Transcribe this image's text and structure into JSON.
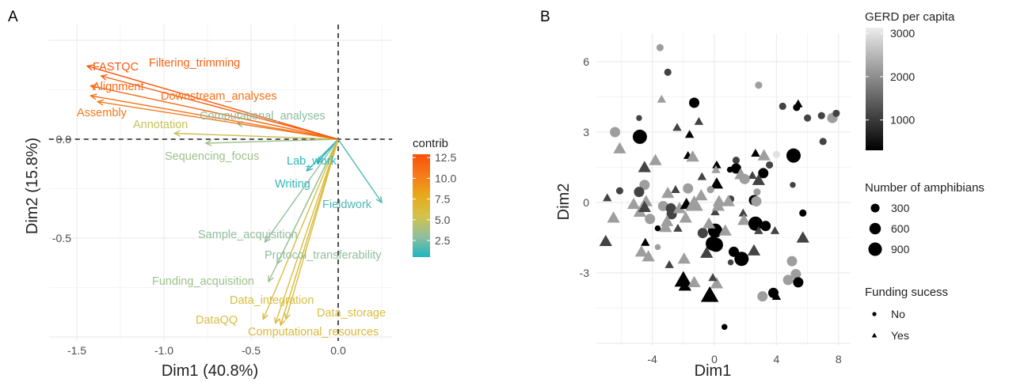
{
  "chart_data": [
    {
      "panel_label": "A",
      "type": "biplot-arrows",
      "xlabel": "Dim1 (40.8%)",
      "ylabel": "Dim2 (15.8%)",
      "xlim": [
        -1.66,
        0.31
      ],
      "ylim": [
        -1.02,
        0.58
      ],
      "x_ticks": [
        -1.5,
        -1.0,
        -0.5,
        0.0
      ],
      "x_tick_labels": [
        "-1.5",
        "-1.0",
        "-0.5",
        "0.0"
      ],
      "y_ticks": [
        0.0,
        -0.5
      ],
      "y_tick_labels": [
        "0.0",
        "-0.5"
      ],
      "grid": true,
      "reference_lines": "dashed at x=0 and y=0",
      "legend": {
        "title": "contrib",
        "placement": "right",
        "ticks": [
          12.5,
          10.0,
          7.5,
          5.0,
          2.5
        ],
        "tick_labels": [
          "12.5",
          "10.0",
          "7.5",
          "5.0",
          "2.5"
        ],
        "range": [
          0.5,
          12.9
        ],
        "colors": [
          "#1fb5c2",
          "#8fbf9c",
          "#d4c24a",
          "#e8a91a",
          "#f57a1a",
          "#fc4f08"
        ]
      },
      "variables": [
        {
          "name": "FASTQC",
          "x": -1.44,
          "y": 0.37,
          "contrib": 12.5
        },
        {
          "name": "Filtering_trimming",
          "x": -1.36,
          "y": 0.32,
          "contrib": 12.0
        },
        {
          "name": "Alignment",
          "x": -1.42,
          "y": 0.27,
          "contrib": 11.5
        },
        {
          "name": "Downstream_analyses",
          "x": -1.42,
          "y": 0.22,
          "contrib": 11.0
        },
        {
          "name": "Assembly",
          "x": -1.38,
          "y": 0.19,
          "contrib": 10.5
        },
        {
          "name": "Computational_analyses",
          "x": -0.58,
          "y": 0.08,
          "contrib": 2.8
        },
        {
          "name": "Annotation",
          "x": -0.94,
          "y": 0.03,
          "contrib": 5.0
        },
        {
          "name": "Sequencing_focus",
          "x": -0.76,
          "y": -0.02,
          "contrib": 3.5
        },
        {
          "name": "Lab_work",
          "x": -0.12,
          "y": -0.12,
          "contrib": 0.8
        },
        {
          "name": "Writing",
          "x": -0.18,
          "y": -0.16,
          "contrib": 1.0
        },
        {
          "name": "Fieldwork",
          "x": 0.25,
          "y": -0.32,
          "contrib": 1.5
        },
        {
          "name": "Sample_acquisition",
          "x": -0.42,
          "y": -0.52,
          "contrib": 3.0
        },
        {
          "name": "Protocol_transferability",
          "x": -0.35,
          "y": -0.63,
          "contrib": 3.0
        },
        {
          "name": "Funding_acquisition",
          "x": -0.4,
          "y": -0.72,
          "contrib": 3.5
        },
        {
          "name": "Data_integration",
          "x": -0.36,
          "y": -0.93,
          "contrib": 6.0
        },
        {
          "name": "DataQQ",
          "x": -0.43,
          "y": -0.91,
          "contrib": 6.0
        },
        {
          "name": "Data_storage",
          "x": -0.3,
          "y": -0.91,
          "contrib": 6.0
        },
        {
          "name": "Computational_resources",
          "x": -0.33,
          "y": -0.94,
          "contrib": 6.5
        }
      ]
    },
    {
      "panel_label": "B",
      "type": "scatter",
      "xlabel": "Dim1",
      "ylabel": "Dim2",
      "xlim": [
        -7.6,
        8.8
      ],
      "ylim": [
        -6.1,
        7.2
      ],
      "x_ticks": [
        -4,
        0,
        4,
        8
      ],
      "x_tick_labels": [
        "-4",
        "0",
        "4",
        "8"
      ],
      "y_ticks": [
        6,
        3,
        0,
        -3
      ],
      "y_tick_labels": [
        "6",
        "3",
        "0",
        "-3"
      ],
      "grid": true,
      "legend_color": {
        "title": "GERD per capita",
        "ticks": [
          3000,
          2000,
          1000
        ],
        "tick_labels": [
          "3000",
          "2000",
          "1000"
        ],
        "range": [
          300,
          3130
        ],
        "colors": [
          "#000000",
          "#ececec"
        ]
      },
      "legend_size": {
        "title": "Number of amphibians",
        "values": [
          300,
          600,
          900
        ],
        "labels": [
          "300",
          "600",
          "900"
        ]
      },
      "legend_shape": {
        "title": "Funding sucess",
        "levels": [
          "No",
          "Yes"
        ],
        "shapes": [
          "circle",
          "triangle"
        ]
      },
      "point_fields": [
        "dim1",
        "dim2",
        "gerd_per_capita",
        "number_of_amphibians",
        "funding_success"
      ],
      "points": [
        [
          -3.5,
          6.6,
          2200,
          150,
          "No"
        ],
        [
          -3.0,
          5.55,
          1100,
          150,
          "No"
        ],
        [
          -3.4,
          4.4,
          2200,
          150,
          "Yes"
        ],
        [
          -1.3,
          4.25,
          300,
          400,
          "No"
        ],
        [
          -4.85,
          3.6,
          1100,
          80,
          "No"
        ],
        [
          -1.0,
          3.45,
          1100,
          150,
          "Yes"
        ],
        [
          -2.4,
          3.2,
          1100,
          150,
          "Yes"
        ],
        [
          -6.4,
          3.0,
          2200,
          400,
          "No"
        ],
        [
          -1.6,
          2.9,
          300,
          150,
          "Yes"
        ],
        [
          -4.8,
          2.8,
          300,
          900,
          "No"
        ],
        [
          -6.1,
          2.3,
          2200,
          400,
          "Yes"
        ],
        [
          -1.7,
          2.0,
          300,
          150,
          "Yes"
        ],
        [
          -1.4,
          1.95,
          2200,
          400,
          "Yes"
        ],
        [
          -3.8,
          1.8,
          2200,
          400,
          "Yes"
        ],
        [
          -4.5,
          1.5,
          1100,
          400,
          "Yes"
        ],
        [
          0.15,
          1.6,
          300,
          150,
          "Yes"
        ],
        [
          -0.8,
          1.1,
          1100,
          150,
          "Yes"
        ],
        [
          0.15,
          0.8,
          300,
          400,
          "Yes"
        ],
        [
          -6.1,
          0.5,
          1100,
          150,
          "No"
        ],
        [
          -4.5,
          0.75,
          2200,
          400,
          "No"
        ],
        [
          -4.85,
          0.45,
          1100,
          400,
          "No"
        ],
        [
          -3.0,
          0.4,
          2200,
          400,
          "Yes"
        ],
        [
          -2.5,
          0.55,
          1100,
          150,
          "Yes"
        ],
        [
          -1.7,
          0.6,
          2200,
          400,
          "No"
        ],
        [
          -0.25,
          0.55,
          2200,
          150,
          "No"
        ],
        [
          -0.85,
          0.3,
          2200,
          400,
          "Yes"
        ],
        [
          -6.9,
          0.2,
          1100,
          150,
          "Yes"
        ],
        [
          2.85,
          5.0,
          2200,
          150,
          "No"
        ],
        [
          4.4,
          4.1,
          1100,
          150,
          "No"
        ],
        [
          5.3,
          4.05,
          300,
          150,
          "No"
        ],
        [
          5.4,
          4.2,
          300,
          150,
          "Yes"
        ],
        [
          6.0,
          3.6,
          1100,
          150,
          "No"
        ],
        [
          6.9,
          3.7,
          1100,
          150,
          "No"
        ],
        [
          7.6,
          3.6,
          2200,
          400,
          "No"
        ],
        [
          7.85,
          3.8,
          1100,
          150,
          "No"
        ],
        [
          7.0,
          2.6,
          1100,
          150,
          "No"
        ],
        [
          5.1,
          2.0,
          300,
          900,
          "No"
        ],
        [
          4.0,
          2.05,
          3000,
          150,
          "No"
        ],
        [
          3.2,
          2.0,
          2200,
          400,
          "Yes"
        ],
        [
          2.65,
          2.1,
          300,
          150,
          "Yes"
        ],
        [
          3.55,
          1.6,
          1100,
          150,
          "No"
        ],
        [
          1.4,
          1.8,
          1100,
          150,
          "No"
        ],
        [
          1.4,
          1.45,
          300,
          400,
          "No"
        ],
        [
          1.0,
          1.4,
          300,
          80,
          "No"
        ],
        [
          0.1,
          1.4,
          2200,
          150,
          "Yes"
        ],
        [
          3.15,
          1.25,
          300,
          400,
          "No"
        ],
        [
          2.45,
          1.15,
          1100,
          150,
          "Yes"
        ],
        [
          1.7,
          1.2,
          2200,
          400,
          "Yes"
        ],
        [
          1.95,
          1.0,
          2200,
          400,
          "No"
        ],
        [
          2.85,
          0.95,
          1100,
          400,
          "Yes"
        ],
        [
          5.05,
          0.75,
          1100,
          80,
          "No"
        ],
        [
          2.75,
          0.45,
          2200,
          150,
          "No"
        ],
        [
          2.55,
          0.1,
          300,
          400,
          "No"
        ],
        [
          2.7,
          0.05,
          2200,
          400,
          "No"
        ],
        [
          1.05,
          0.15,
          1100,
          150,
          "No"
        ],
        [
          0.3,
          0.05,
          2200,
          400,
          "Yes"
        ],
        [
          0.9,
          0.05,
          2200,
          400,
          "Yes"
        ],
        [
          5.7,
          -0.45,
          300,
          150,
          "No"
        ],
        [
          5.7,
          -1.5,
          1100,
          400,
          "Yes"
        ],
        [
          1.85,
          -0.45,
          1100,
          150,
          "Yes"
        ],
        [
          1.9,
          -0.75,
          2200,
          400,
          "Yes"
        ],
        [
          2.65,
          -0.9,
          300,
          900,
          "No"
        ],
        [
          3.3,
          -1.0,
          300,
          400,
          "No"
        ],
        [
          2.85,
          -1.2,
          1100,
          150,
          "Yes"
        ],
        [
          3.9,
          -1.2,
          1100,
          150,
          "Yes"
        ],
        [
          0.05,
          -1.2,
          300,
          900,
          "No"
        ],
        [
          0.7,
          -1.2,
          2200,
          400,
          "Yes"
        ],
        [
          0.1,
          -1.8,
          300,
          900,
          "No"
        ],
        [
          1.25,
          -2.1,
          300,
          400,
          "No"
        ],
        [
          1.75,
          -2.4,
          300,
          900,
          "No"
        ],
        [
          2.55,
          -2.05,
          1100,
          400,
          "Yes"
        ],
        [
          1.05,
          -2.55,
          1100,
          80,
          "No"
        ],
        [
          5.0,
          -2.5,
          2200,
          400,
          "No"
        ],
        [
          5.25,
          -3.05,
          2200,
          400,
          "No"
        ],
        [
          4.75,
          -3.3,
          2200,
          400,
          "No"
        ],
        [
          5.4,
          -3.4,
          300,
          400,
          "No"
        ],
        [
          3.8,
          -3.85,
          300,
          400,
          "No"
        ],
        [
          4.0,
          -4.0,
          300,
          150,
          "Yes"
        ],
        [
          3.1,
          -4.0,
          2200,
          400,
          "No"
        ],
        [
          0.65,
          -5.3,
          300,
          80,
          "No"
        ],
        [
          0.15,
          -3.45,
          2200,
          400,
          "Yes"
        ],
        [
          -0.3,
          -3.95,
          300,
          900,
          "Yes"
        ],
        [
          -6.5,
          -0.65,
          2200,
          400,
          "Yes"
        ],
        [
          -7.0,
          -1.65,
          1100,
          400,
          "Yes"
        ],
        [
          -5.2,
          -0.07,
          2200,
          400,
          "Yes"
        ],
        [
          -4.4,
          0.05,
          2200,
          400,
          "Yes"
        ],
        [
          -4.8,
          -0.4,
          2200,
          400,
          "Yes"
        ],
        [
          -4.5,
          -0.2,
          1100,
          400,
          "Yes"
        ],
        [
          -4.15,
          -0.7,
          2200,
          400,
          "No"
        ],
        [
          -3.3,
          -0.15,
          2200,
          400,
          "No"
        ],
        [
          -2.8,
          -0.25,
          1100,
          400,
          "No"
        ],
        [
          -2.75,
          -0.5,
          1100,
          400,
          "No"
        ],
        [
          -3.05,
          -0.8,
          2200,
          400,
          "Yes"
        ],
        [
          -3.15,
          -1.05,
          2200,
          400,
          "Yes"
        ],
        [
          -3.65,
          -1.1,
          300,
          80,
          "No"
        ],
        [
          -2.35,
          -1.1,
          1100,
          150,
          "Yes"
        ],
        [
          -1.85,
          -0.65,
          2200,
          400,
          "Yes"
        ],
        [
          -2.25,
          -0.25,
          2200,
          400,
          "Yes"
        ],
        [
          -1.8,
          -0.07,
          300,
          400,
          "Yes"
        ],
        [
          -1.3,
          -0.07,
          2200,
          900,
          "Yes"
        ],
        [
          -0.75,
          -1.3,
          1100,
          400,
          "No"
        ],
        [
          -0.35,
          -0.9,
          2200,
          400,
          "Yes"
        ],
        [
          -0.1,
          -1.75,
          300,
          900,
          "No"
        ],
        [
          -0.5,
          -2.15,
          1100,
          400,
          "Yes"
        ],
        [
          -4.45,
          -1.7,
          300,
          150,
          "Yes"
        ],
        [
          -3.65,
          -1.9,
          2200,
          80,
          "No"
        ],
        [
          -4.7,
          -2.1,
          2200,
          400,
          "Yes"
        ],
        [
          -4.25,
          -2.3,
          2200,
          400,
          "Yes"
        ],
        [
          -2.9,
          -2.65,
          1100,
          150,
          "Yes"
        ],
        [
          -1.95,
          -2.4,
          2200,
          400,
          "Yes"
        ],
        [
          -2.0,
          -3.3,
          300,
          900,
          "Yes"
        ],
        [
          -1.9,
          -3.55,
          300,
          400,
          "Yes"
        ],
        [
          -1.3,
          -3.4,
          2200,
          400,
          "Yes"
        ],
        [
          -0.1,
          -3.2,
          1100,
          150,
          "Yes"
        ],
        [
          0.05,
          -0.4,
          1100,
          150,
          "Yes"
        ],
        [
          0.25,
          -0.15,
          2200,
          400,
          "Yes"
        ]
      ]
    }
  ]
}
